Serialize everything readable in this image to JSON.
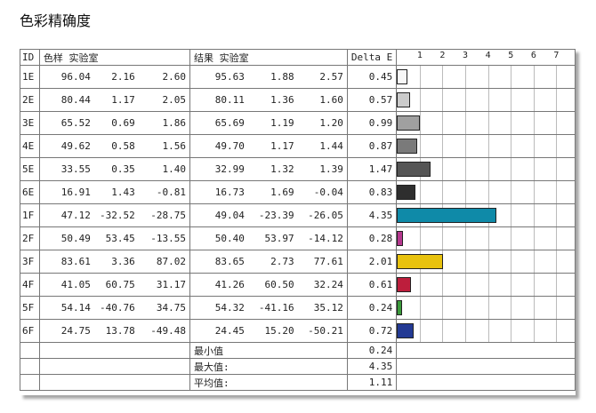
{
  "title": "色彩精确度",
  "headers": {
    "id": "ID",
    "sample": "色样 实验室",
    "result": "结果 实验室",
    "delta": "Delta E"
  },
  "scale_ticks": [
    "1",
    "2",
    "3",
    "4",
    "5",
    "6",
    "7"
  ],
  "rows": [
    {
      "id": "1E",
      "s1": "96.04",
      "s2": "2.16",
      "s3": "2.60",
      "r1": "95.63",
      "r2": "1.88",
      "r3": "2.57",
      "delta": "0.45",
      "value": 0.45,
      "color": "#f7f7f7"
    },
    {
      "id": "2E",
      "s1": "80.44",
      "s2": "1.17",
      "s3": "2.05",
      "r1": "80.11",
      "r2": "1.36",
      "r3": "1.60",
      "delta": "0.57",
      "value": 0.57,
      "color": "#cbcbcb"
    },
    {
      "id": "3E",
      "s1": "65.52",
      "s2": "0.69",
      "s3": "1.86",
      "r1": "65.69",
      "r2": "1.19",
      "r3": "1.20",
      "delta": "0.99",
      "value": 0.99,
      "color": "#a0a0a0"
    },
    {
      "id": "4E",
      "s1": "49.62",
      "s2": "0.58",
      "s3": "1.56",
      "r1": "49.70",
      "r2": "1.17",
      "r3": "1.44",
      "delta": "0.87",
      "value": 0.87,
      "color": "#7a7a7a"
    },
    {
      "id": "5E",
      "s1": "33.55",
      "s2": "0.35",
      "s3": "1.40",
      "r1": "32.99",
      "r2": "1.32",
      "r3": "1.39",
      "delta": "1.47",
      "value": 1.47,
      "color": "#555555"
    },
    {
      "id": "6E",
      "s1": "16.91",
      "s2": "1.43",
      "s3": "-0.81",
      "r1": "16.73",
      "r2": "1.69",
      "r3": "-0.04",
      "delta": "0.83",
      "value": 0.83,
      "color": "#2e2e2e"
    },
    {
      "id": "1F",
      "s1": "47.12",
      "s2": "-32.52",
      "s3": "-28.75",
      "r1": "49.04",
      "r2": "-23.39",
      "r3": "-26.05",
      "delta": "4.35",
      "value": 4.35,
      "color": "#0f8aa8"
    },
    {
      "id": "2F",
      "s1": "50.49",
      "s2": "53.45",
      "s3": "-13.55",
      "r1": "50.40",
      "r2": "53.97",
      "r3": "-14.12",
      "delta": "0.28",
      "value": 0.28,
      "color": "#b5378e"
    },
    {
      "id": "3F",
      "s1": "83.61",
      "s2": "3.36",
      "s3": "87.02",
      "r1": "83.65",
      "r2": "2.73",
      "r3": "77.61",
      "delta": "2.01",
      "value": 2.01,
      "color": "#e8c20e"
    },
    {
      "id": "4F",
      "s1": "41.05",
      "s2": "60.75",
      "s3": "31.17",
      "r1": "41.26",
      "r2": "60.50",
      "r3": "32.24",
      "delta": "0.61",
      "value": 0.61,
      "color": "#bd1e3c"
    },
    {
      "id": "5F",
      "s1": "54.14",
      "s2": "-40.76",
      "s3": "34.75",
      "r1": "54.32",
      "r2": "-41.16",
      "r3": "35.12",
      "delta": "0.24",
      "value": 0.24,
      "color": "#3a9a3a"
    },
    {
      "id": "6F",
      "s1": "24.75",
      "s2": "13.78",
      "s3": "-49.48",
      "r1": "24.45",
      "r2": "15.20",
      "r3": "-50.21",
      "delta": "0.72",
      "value": 0.72,
      "color": "#233a94"
    }
  ],
  "summary": [
    {
      "label": "最小值",
      "value": "0.24"
    },
    {
      "label": "最大值:",
      "value": "4.35"
    },
    {
      "label": "平均值:",
      "value": "1.11"
    }
  ]
}
